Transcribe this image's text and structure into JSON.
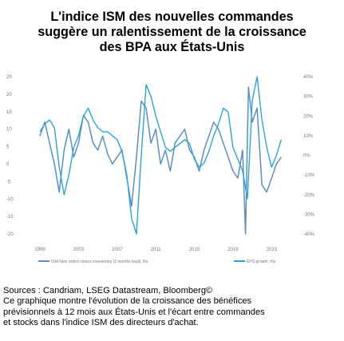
{
  "title_lines": [
    "L'indice ISM des nouvelles commandes",
    "suggère un ralentissement de la croissance",
    "des BPA aux États-Unis"
  ],
  "sources": "Sources : Candriam, LSEG Datastream, Bloomberg©",
  "description_lines": [
    "Ce graphique montre l'évolution de la croissance des bénéfices",
    "prévisionnels à 12 mois aux États-Unis et l'écart entre commandes",
    "et stocks dans l'indice ISM des directeurs d'achat."
  ],
  "colors": {
    "ism_series": "#5b8ec9",
    "eps_series": "#2aa4e0",
    "tick_text": "#777777"
  },
  "chart_data": {
    "type": "line",
    "title": "L'indice ISM des nouvelles commandes suggère un ralentissement de la croissance des BPA aux États-Unis",
    "x_ticks": [
      "1999",
      "2003",
      "2007",
      "2011",
      "2015",
      "2019",
      "2023"
    ],
    "x_range": [
      1998.5,
      2024.3
    ],
    "y_left": {
      "ticks": [
        "25",
        "20",
        "15",
        "10",
        "5",
        "0",
        "-5",
        "-10",
        "-15",
        "-20"
      ],
      "range": [
        -20,
        25
      ]
    },
    "y_right": {
      "ticks": [
        "40%",
        "30%",
        "20%",
        "10%",
        "0%",
        "-10%",
        "-20%",
        "-30%",
        "-40%"
      ],
      "range": [
        -40,
        40
      ]
    },
    "grid": false,
    "legend_position": "bottom",
    "series": [
      {
        "name": "ISM New orders minus inventories (2 months lead), lhs",
        "axis": "left",
        "x": [
          1999,
          1999.5,
          2000,
          2000.5,
          2001,
          2001.5,
          2002,
          2002.5,
          2003,
          2003.5,
          2004,
          2004.5,
          2005,
          2005.5,
          2006,
          2006.5,
          2007,
          2007.5,
          2008,
          2008.5,
          2009,
          2009.5,
          2010,
          2010.5,
          2011,
          2011.5,
          2012,
          2012.5,
          2013,
          2013.5,
          2014,
          2014.5,
          2015,
          2015.5,
          2016,
          2016.5,
          2017,
          2017.5,
          2018,
          2018.5,
          2019,
          2019.5,
          2020,
          2020.3,
          2020.6,
          2021,
          2021.5,
          2022,
          2022.5,
          2023,
          2023.5,
          2024
        ],
        "y": [
          8,
          12,
          6,
          0,
          -8,
          4,
          10,
          2,
          6,
          14,
          12,
          6,
          4,
          8,
          3,
          0,
          2,
          4,
          -4,
          -12,
          2,
          18,
          16,
          6,
          10,
          0,
          4,
          -2,
          6,
          8,
          10,
          4,
          2,
          -2,
          4,
          8,
          12,
          10,
          6,
          2,
          -2,
          -4,
          4,
          -20,
          22,
          12,
          16,
          -6,
          -8,
          -4,
          0,
          2
        ]
      },
      {
        "name": "EPS growth, rhs",
        "axis": "right",
        "x": [
          1999,
          1999.5,
          2000,
          2000.5,
          2001,
          2001.5,
          2002,
          2002.5,
          2003,
          2003.5,
          2004,
          2004.5,
          2005,
          2005.5,
          2006,
          2006.5,
          2007,
          2007.5,
          2008,
          2008.5,
          2009,
          2009.5,
          2010,
          2010.5,
          2011,
          2011.5,
          2012,
          2012.5,
          2013,
          2013.5,
          2014,
          2014.5,
          2015,
          2015.5,
          2016,
          2016.5,
          2017,
          2017.5,
          2018,
          2018.5,
          2019,
          2019.5,
          2020,
          2020.5,
          2021,
          2021.5,
          2022,
          2022.5,
          2023,
          2023.5,
          2024
        ],
        "y": [
          12,
          16,
          18,
          14,
          -6,
          -20,
          -10,
          4,
          10,
          20,
          24,
          18,
          14,
          12,
          12,
          10,
          8,
          2,
          -10,
          -32,
          -40,
          0,
          36,
          30,
          20,
          12,
          4,
          2,
          4,
          6,
          8,
          6,
          -2,
          -6,
          -4,
          2,
          10,
          16,
          24,
          22,
          4,
          -2,
          -8,
          -22,
          28,
          40,
          18,
          4,
          -6,
          0,
          8
        ]
      }
    ]
  }
}
